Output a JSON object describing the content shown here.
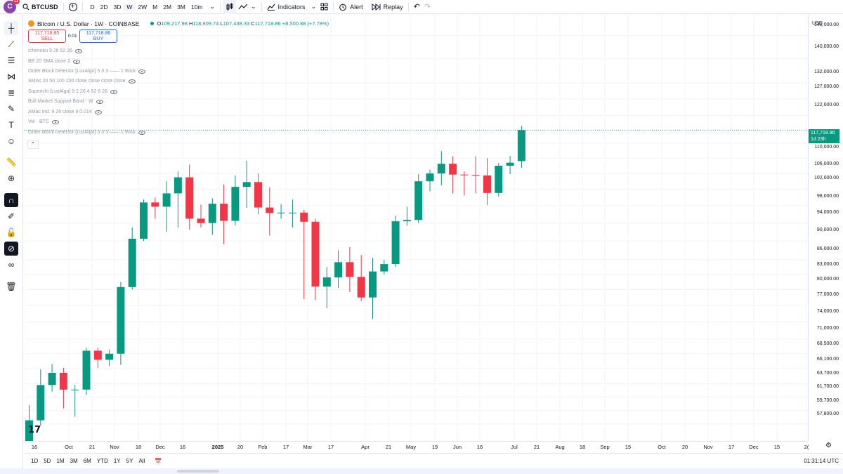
{
  "topbar": {
    "logo_letter": "C",
    "logo_badge": "11",
    "symbol": "BTCUSD",
    "timeframes": [
      "D",
      "2D",
      "3D",
      "W",
      "2W",
      "M",
      "2M",
      "3M",
      "10m"
    ],
    "active_timeframe": "W",
    "indicators_label": "Indicators",
    "alert_label": "Alert",
    "replay_label": "Replay"
  },
  "legend": {
    "title": "Bitcoin / U.S. Dollar · 1W · COINBASE",
    "open_label": "O",
    "open": "109,217.98",
    "high_label": "H",
    "high": "118,909.74",
    "low_label": "L",
    "low": "107,438.33",
    "close_label": "C",
    "close": "117,718.86",
    "change": "+8,500.88 (+7.78%)",
    "sell_price": "117,718.85",
    "sell_label": "SELL",
    "spread": "0.01",
    "buy_price": "117,718.86",
    "buy_label": "BUY"
  },
  "indicators": [
    "Ichimoku 9 26 52 26",
    "BB 20 SMA close 2",
    "Order Block Detector [LuxAlgo] 5 3 3 —— 1 Wick",
    "SMAs 20 50 100 200 close close close close",
    "Superichi [LuxAlgo] 9 2 26 4 52 6 26",
    "Bull Market Support Band - W",
    "AMac Ind. 9 26 close 9 0.014",
    "Vol · BTC",
    "Order Block Detector [LuxAlgo] 5 3 3 —— 1 Wick"
  ],
  "price_axis": {
    "currency": "USD",
    "labels": [
      "148,000.00",
      "140,000.00",
      "132,000.00",
      "127,000.00",
      "122,000.00",
      "114,000.00",
      "110,000.00",
      "106,000.00",
      "102,000.00",
      "98,000.00",
      "94,000.00",
      "90,000.00",
      "86,000.00",
      "83,000.00",
      "80,000.00",
      "77,000.00",
      "74,000.00",
      "71,000.00",
      "68,500.00",
      "66,100.00",
      "63,700.00",
      "61,700.00",
      "59,700.00",
      "57,800.00"
    ],
    "current_price": "117,718.86",
    "countdown": "1d 23h"
  },
  "time_axis": {
    "labels": [
      "16",
      "Oct",
      "21",
      "Nov",
      "18",
      "Dec",
      "16",
      "2025",
      "20",
      "Feb",
      "17",
      "Mar",
      "17",
      "Apr",
      "21",
      "May",
      "19",
      "Jun",
      "16",
      "Jul",
      "21",
      "Aug",
      "18",
      "Sep",
      "15",
      "Oct",
      "20",
      "Nov",
      "17",
      "Dec",
      "15",
      "2("
    ]
  },
  "bottombar": {
    "ranges": [
      "1D",
      "5D",
      "1M",
      "3M",
      "6M",
      "YTD",
      "1Y",
      "5Y",
      "All"
    ],
    "clock": "01:31:14 UTC"
  },
  "colors": {
    "up": "#089981",
    "down": "#f23645",
    "grid": "#f0f3fa",
    "accent": "#2962ff"
  },
  "chart_data": {
    "type": "candlestick",
    "series": "BTCUSD 1W",
    "ylim": [
      56500,
      152000
    ],
    "candles": [
      {
        "o": 54000,
        "h": 60500,
        "l": 52500,
        "c": 58300
      },
      {
        "o": 58300,
        "h": 66000,
        "l": 57500,
        "c": 63500
      },
      {
        "o": 63500,
        "h": 66800,
        "l": 62500,
        "c": 65400
      },
      {
        "o": 65400,
        "h": 66200,
        "l": 60000,
        "c": 62800
      },
      {
        "o": 62800,
        "h": 63500,
        "l": 58800,
        "c": 62800
      },
      {
        "o": 62800,
        "h": 69500,
        "l": 62000,
        "c": 69000
      },
      {
        "o": 69000,
        "h": 69500,
        "l": 66200,
        "c": 67500
      },
      {
        "o": 67500,
        "h": 69200,
        "l": 66500,
        "c": 68500
      },
      {
        "o": 68500,
        "h": 81500,
        "l": 66700,
        "c": 80500
      },
      {
        "o": 80500,
        "h": 93000,
        "l": 80000,
        "c": 90500
      },
      {
        "o": 90500,
        "h": 99500,
        "l": 90000,
        "c": 98800
      },
      {
        "o": 98800,
        "h": 100000,
        "l": 95000,
        "c": 97800
      },
      {
        "o": 97800,
        "h": 104000,
        "l": 92000,
        "c": 101000
      },
      {
        "o": 101000,
        "h": 106500,
        "l": 93000,
        "c": 105000
      },
      {
        "o": 105000,
        "h": 108300,
        "l": 92500,
        "c": 95000
      },
      {
        "o": 95000,
        "h": 98300,
        "l": 93000,
        "c": 94000
      },
      {
        "o": 94000,
        "h": 99800,
        "l": 91400,
        "c": 98500
      },
      {
        "o": 98500,
        "h": 103200,
        "l": 89300,
        "c": 94500
      },
      {
        "o": 94500,
        "h": 105500,
        "l": 93500,
        "c": 102600
      },
      {
        "o": 102600,
        "h": 109300,
        "l": 97500,
        "c": 103800
      },
      {
        "o": 103800,
        "h": 106000,
        "l": 96000,
        "c": 97600
      },
      {
        "o": 97600,
        "h": 102500,
        "l": 91200,
        "c": 96300
      },
      {
        "o": 96300,
        "h": 98400,
        "l": 95000,
        "c": 96400
      },
      {
        "o": 96400,
        "h": 99500,
        "l": 93000,
        "c": 96400
      },
      {
        "o": 96400,
        "h": 97000,
        "l": 78200,
        "c": 94300
      },
      {
        "o": 94300,
        "h": 95000,
        "l": 78000,
        "c": 80600
      },
      {
        "o": 80600,
        "h": 84500,
        "l": 76500,
        "c": 82400
      },
      {
        "o": 82400,
        "h": 88000,
        "l": 80300,
        "c": 85500
      },
      {
        "o": 85500,
        "h": 88700,
        "l": 79500,
        "c": 82500
      },
      {
        "o": 82500,
        "h": 87000,
        "l": 77800,
        "c": 78500
      },
      {
        "o": 78500,
        "h": 86400,
        "l": 74500,
        "c": 83600
      },
      {
        "o": 83600,
        "h": 86000,
        "l": 83000,
        "c": 85100
      },
      {
        "o": 85100,
        "h": 95700,
        "l": 84500,
        "c": 94400
      },
      {
        "o": 94400,
        "h": 97800,
        "l": 93400,
        "c": 94700
      },
      {
        "o": 94700,
        "h": 105800,
        "l": 94000,
        "c": 104000
      },
      {
        "o": 104000,
        "h": 107000,
        "l": 101500,
        "c": 106000
      },
      {
        "o": 106000,
        "h": 111900,
        "l": 103000,
        "c": 108500
      },
      {
        "o": 108500,
        "h": 110500,
        "l": 101000,
        "c": 105700
      },
      {
        "o": 105700,
        "h": 106500,
        "l": 100500,
        "c": 105600
      },
      {
        "o": 105600,
        "h": 110500,
        "l": 101000,
        "c": 105500
      },
      {
        "o": 105500,
        "h": 110000,
        "l": 98200,
        "c": 101100
      },
      {
        "o": 101100,
        "h": 108700,
        "l": 100200,
        "c": 108000
      },
      {
        "o": 108000,
        "h": 110600,
        "l": 105800,
        "c": 108800
      },
      {
        "o": 109217,
        "h": 118909,
        "l": 107438,
        "c": 117718
      }
    ]
  }
}
